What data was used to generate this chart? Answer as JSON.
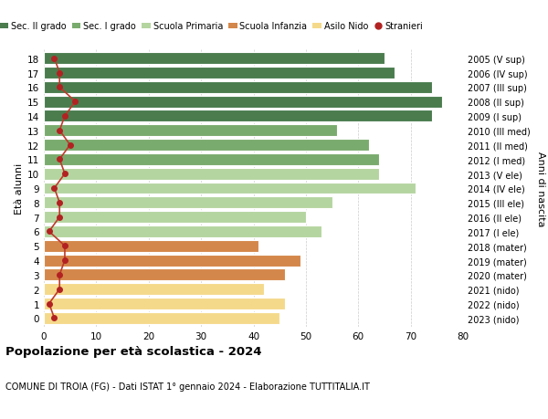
{
  "ages": [
    18,
    17,
    16,
    15,
    14,
    13,
    12,
    11,
    10,
    9,
    8,
    7,
    6,
    5,
    4,
    3,
    2,
    1,
    0
  ],
  "years": [
    "2005 (V sup)",
    "2006 (IV sup)",
    "2007 (III sup)",
    "2008 (II sup)",
    "2009 (I sup)",
    "2010 (III med)",
    "2011 (II med)",
    "2012 (I med)",
    "2013 (V ele)",
    "2014 (IV ele)",
    "2015 (III ele)",
    "2016 (II ele)",
    "2017 (I ele)",
    "2018 (mater)",
    "2019 (mater)",
    "2020 (mater)",
    "2021 (nido)",
    "2022 (nido)",
    "2023 (nido)"
  ],
  "bar_values": [
    65,
    67,
    74,
    76,
    74,
    56,
    62,
    64,
    64,
    71,
    55,
    50,
    53,
    41,
    49,
    46,
    42,
    46,
    45
  ],
  "stranieri": [
    2,
    3,
    3,
    6,
    4,
    3,
    5,
    3,
    4,
    2,
    3,
    3,
    1,
    4,
    4,
    3,
    3,
    1,
    2
  ],
  "bar_colors": [
    "#4a7c4e",
    "#4a7c4e",
    "#4a7c4e",
    "#4a7c4e",
    "#4a7c4e",
    "#7aab6e",
    "#7aab6e",
    "#7aab6e",
    "#b5d5a0",
    "#b5d5a0",
    "#b5d5a0",
    "#b5d5a0",
    "#b5d5a0",
    "#d4874a",
    "#d4874a",
    "#d4874a",
    "#f5d98b",
    "#f5d98b",
    "#f5d98b"
  ],
  "legend_labels": [
    "Sec. II grado",
    "Sec. I grado",
    "Scuola Primaria",
    "Scuola Infanzia",
    "Asilo Nido",
    "Stranieri"
  ],
  "legend_colors": [
    "#4a7c4e",
    "#7aab6e",
    "#b5d5a0",
    "#d4874a",
    "#f5d98b",
    "#b22222"
  ],
  "title": "Popolazione per età scolastica - 2024",
  "subtitle": "COMUNE DI TROIA (FG) - Dati ISTAT 1° gennaio 2024 - Elaborazione TUTTITALIA.IT",
  "ylabel_left": "Età alunni",
  "ylabel_right": "Anni di nascita",
  "xlim": [
    0,
    80
  ],
  "xticks": [
    0,
    10,
    20,
    30,
    40,
    50,
    60,
    70,
    80
  ],
  "bg_color": "#ffffff",
  "stranieri_color": "#b22222",
  "stranieri_line_color": "#c0392b"
}
